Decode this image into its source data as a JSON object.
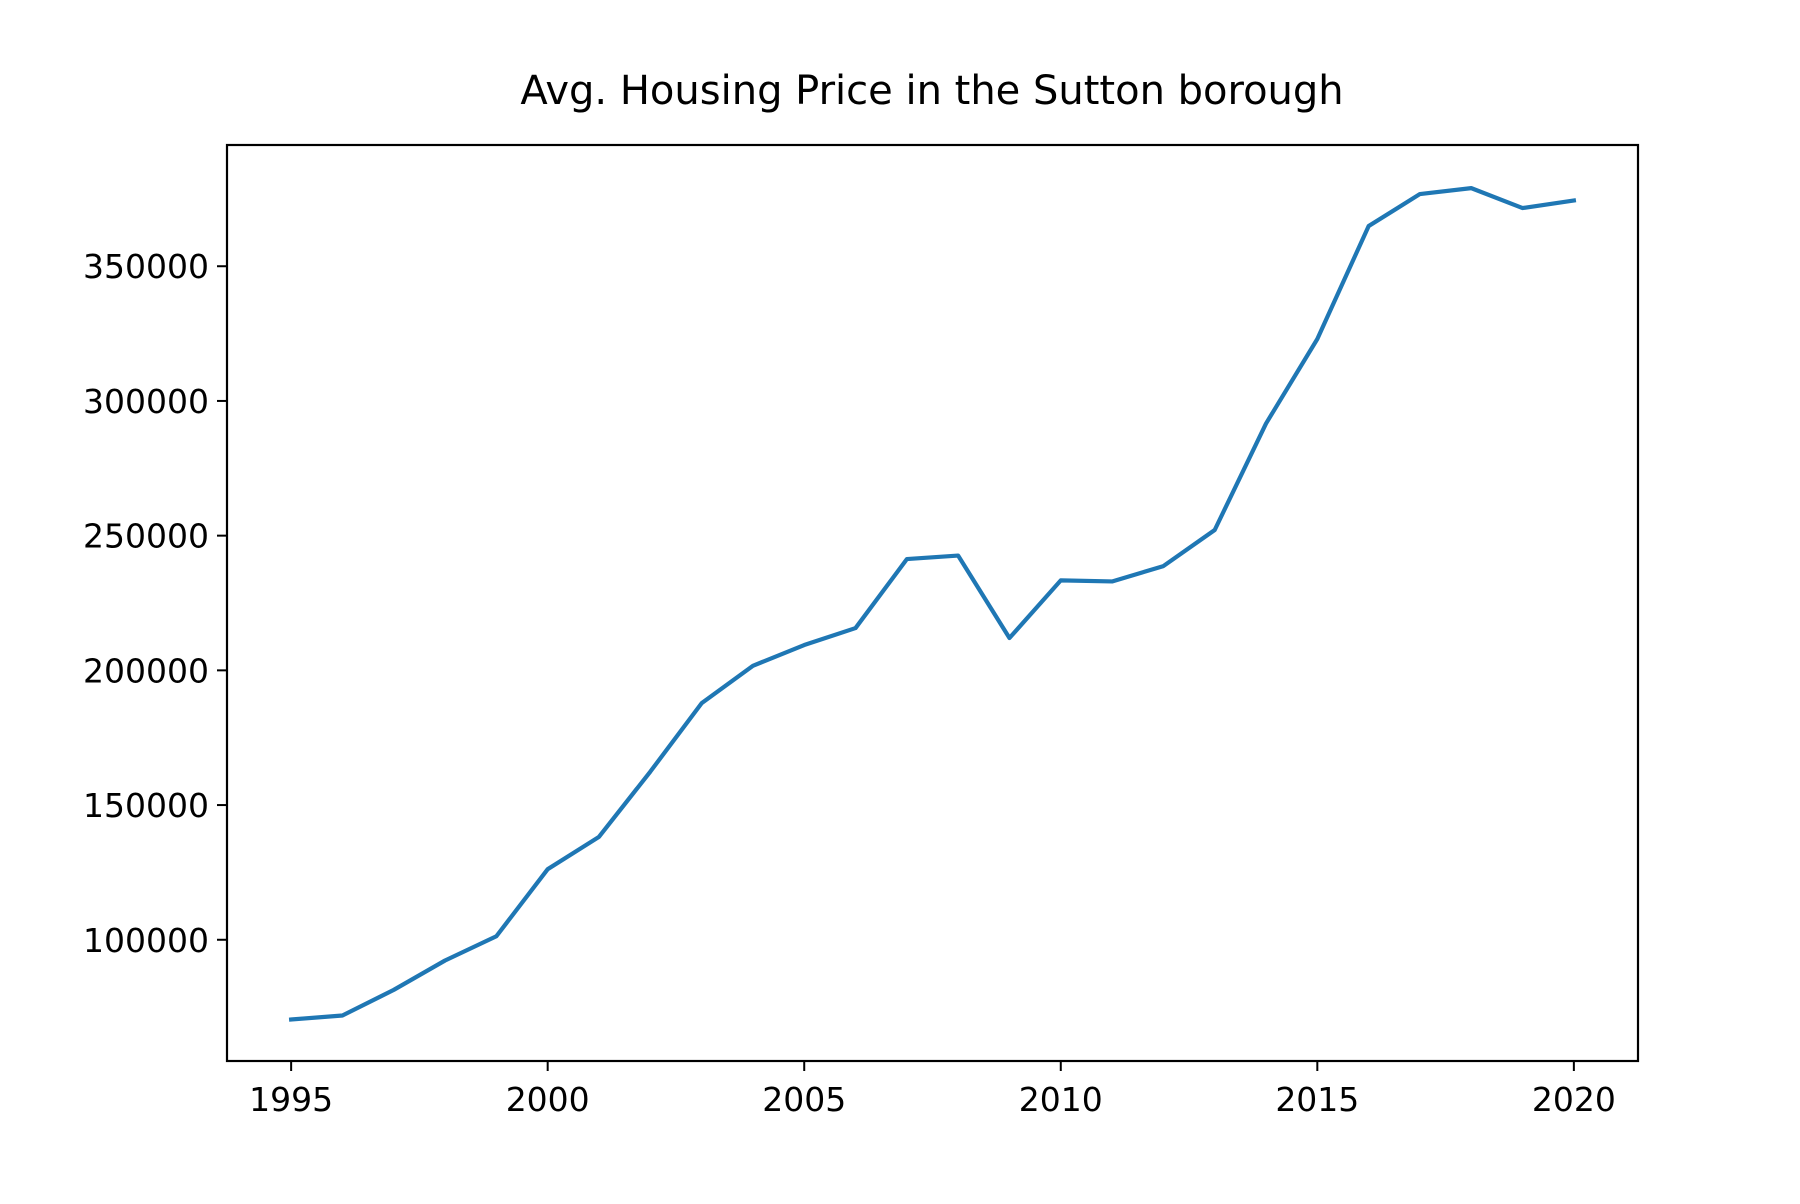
{
  "chart_data": {
    "type": "line",
    "title": "Avg. Housing Price in the Sutton borough",
    "xlabel": "",
    "ylabel": "",
    "x": [
      1995,
      1996,
      1997,
      1998,
      1999,
      2000,
      2001,
      2002,
      2003,
      2004,
      2005,
      2006,
      2007,
      2008,
      2009,
      2010,
      2011,
      2012,
      2013,
      2014,
      2015,
      2016,
      2017,
      2018,
      2019,
      2020
    ],
    "series": [
      {
        "name": "",
        "color": "#1f77b4",
        "values": [
          70400,
          71900,
          81400,
          92300,
          101300,
          126200,
          138200,
          162400,
          187800,
          201700,
          209400,
          215700,
          241300,
          242600,
          212000,
          233400,
          233000,
          238700,
          252100,
          291600,
          323000,
          364900,
          376800,
          379000,
          371600,
          374400
        ]
      }
    ],
    "xlim": [
      1993.75,
      2021.25
    ],
    "ylim": [
      55000,
      395000
    ],
    "xticks": [
      "1995",
      "2000",
      "2005",
      "2010",
      "2015",
      "2020"
    ],
    "yticks": [
      "100000",
      "150000",
      "200000",
      "250000",
      "300000",
      "350000"
    ],
    "grid": false,
    "legend": "none"
  }
}
